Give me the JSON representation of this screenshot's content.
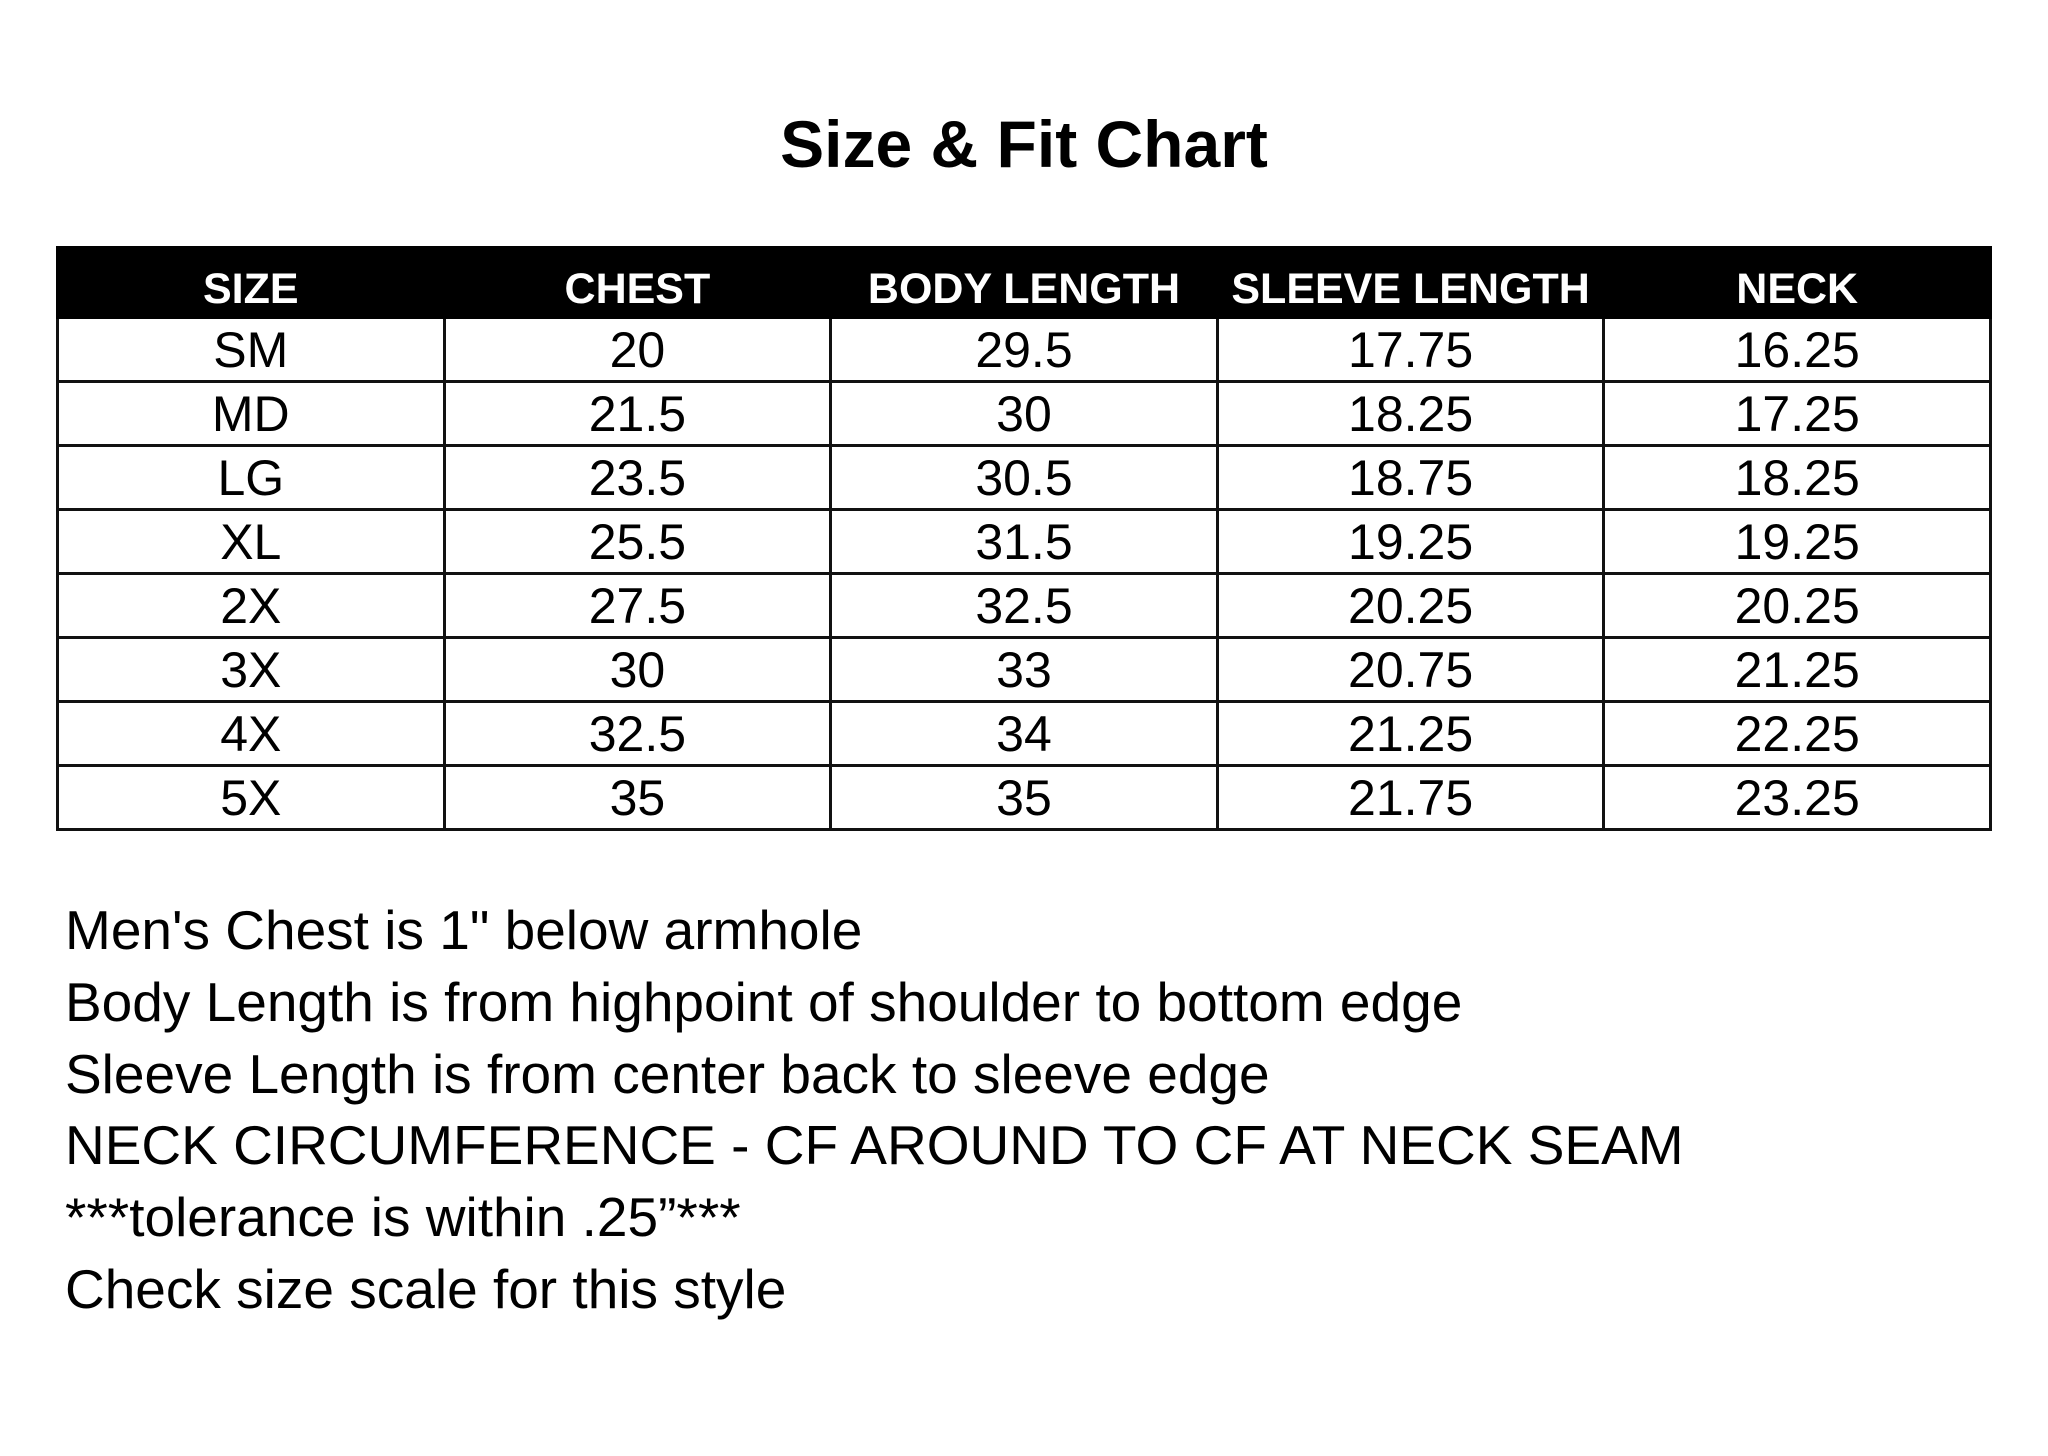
{
  "title": "Size & Fit Chart",
  "table": {
    "headers": [
      "SIZE",
      "CHEST",
      "BODY LENGTH",
      "SLEEVE LENGTH",
      "NECK"
    ],
    "rows": [
      [
        "SM",
        "20",
        "29.5",
        "17.75",
        "16.25"
      ],
      [
        "MD",
        "21.5",
        "30",
        "18.25",
        "17.25"
      ],
      [
        "LG",
        "23.5",
        "30.5",
        "18.75",
        "18.25"
      ],
      [
        "XL",
        "25.5",
        "31.5",
        "19.25",
        "19.25"
      ],
      [
        "2X",
        "27.5",
        "32.5",
        "20.25",
        "20.25"
      ],
      [
        "3X",
        "30",
        "33",
        "20.75",
        "21.25"
      ],
      [
        "4X",
        "32.5",
        "34",
        "21.25",
        "22.25"
      ],
      [
        "5X",
        "35",
        "35",
        "21.75",
        "23.25"
      ]
    ]
  },
  "notes": [
    "Men's Chest is 1\" below armhole",
    "Body Length is from highpoint of shoulder to bottom edge",
    "Sleeve Length is from center back to sleeve edge",
    "NECK CIRCUMFERENCE - CF AROUND TO CF AT NECK SEAM",
    "***tolerance is within .25”***",
    "Check size scale for this style"
  ]
}
